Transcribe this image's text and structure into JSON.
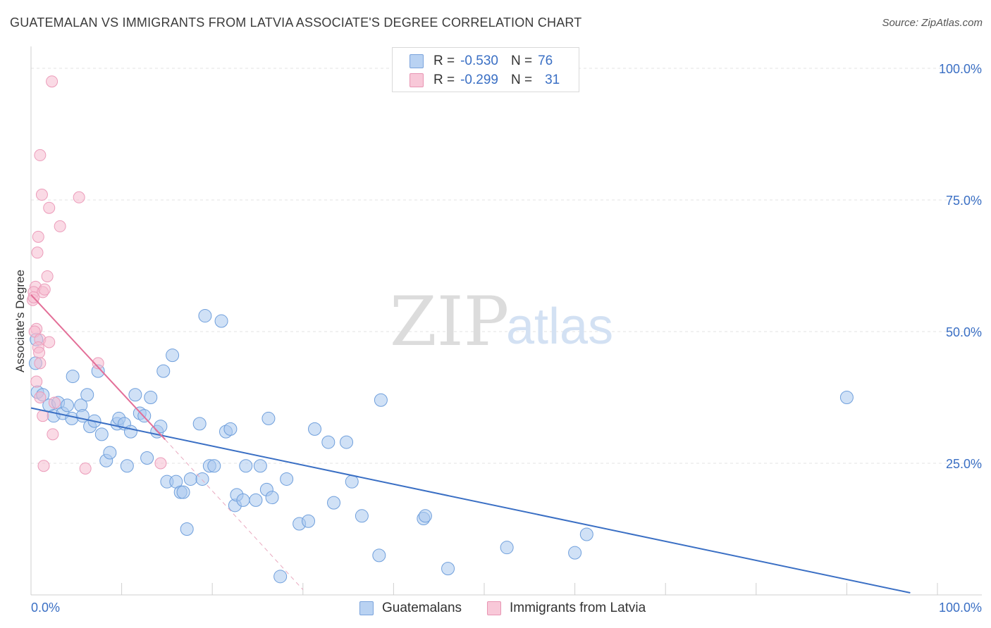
{
  "title": "GUATEMALAN VS IMMIGRANTS FROM LATVIA ASSOCIATE'S DEGREE CORRELATION CHART",
  "source": "Source: ZipAtlas.com",
  "watermark": {
    "zip": "ZIP",
    "atlas": "atlas"
  },
  "colors": {
    "blue": "#3a6fc4",
    "blue_fill": "#aac8ee",
    "pink": "#e36f98",
    "pink_fill": "#f6bcd0",
    "grid": "#e3e3e3"
  },
  "legend": {
    "rows": [
      {
        "r_label": "R =",
        "r_value": "-0.530",
        "n_label": "N =",
        "n_value": "76"
      },
      {
        "r_label": "R =",
        "r_value": "-0.299",
        "n_label": "N =",
        "n_value": "31"
      }
    ]
  },
  "bottom_legend": {
    "series1": "Guatemalans",
    "series2": "Immigrants from Latvia"
  },
  "chart_data": {
    "type": "scatter",
    "xlabel": "",
    "ylabel": "Associate's Degree",
    "xlim": [
      0,
      100
    ],
    "ylim": [
      0,
      100
    ],
    "x_tick_labels": [
      "0.0%",
      "100.0%"
    ],
    "y_tick_labels": [
      "25.0%",
      "50.0%",
      "75.0%",
      "100.0%"
    ],
    "y_tick_values": [
      25,
      50,
      75,
      100
    ],
    "grid": true,
    "series": [
      {
        "name": "Guatemalans",
        "trend": {
          "x": [
            0,
            97
          ],
          "y": [
            35.5,
            0.4
          ]
        },
        "points": [
          [
            0.5,
            44
          ],
          [
            0.7,
            38.5
          ],
          [
            1.3,
            38
          ],
          [
            2,
            36
          ],
          [
            2.5,
            34
          ],
          [
            3,
            36.5
          ],
          [
            3.5,
            34.5
          ],
          [
            4,
            36
          ],
          [
            4.5,
            33.5
          ],
          [
            4.6,
            41.5
          ],
          [
            5.5,
            36
          ],
          [
            5.7,
            34
          ],
          [
            6.2,
            38
          ],
          [
            6.5,
            32
          ],
          [
            7,
            33
          ],
          [
            7.4,
            42.5
          ],
          [
            7.8,
            30.5
          ],
          [
            8.3,
            25.5
          ],
          [
            8.7,
            27
          ],
          [
            9.5,
            32.5
          ],
          [
            9.7,
            33.5
          ],
          [
            10.3,
            32.5
          ],
          [
            10.6,
            24.5
          ],
          [
            11,
            31
          ],
          [
            11.5,
            38
          ],
          [
            12,
            34.5
          ],
          [
            12.5,
            34
          ],
          [
            12.8,
            26
          ],
          [
            13.2,
            37.5
          ],
          [
            13.9,
            31
          ],
          [
            14.3,
            32
          ],
          [
            14.6,
            42.5
          ],
          [
            15,
            21.5
          ],
          [
            15.6,
            45.5
          ],
          [
            16,
            21.5
          ],
          [
            16.5,
            19.5
          ],
          [
            16.8,
            19.5
          ],
          [
            17.2,
            12.5
          ],
          [
            17.6,
            22
          ],
          [
            18.6,
            32.5
          ],
          [
            18.9,
            22
          ],
          [
            19.2,
            53
          ],
          [
            19.7,
            24.5
          ],
          [
            20.2,
            24.5
          ],
          [
            21,
            52
          ],
          [
            21.5,
            31
          ],
          [
            22,
            31.5
          ],
          [
            22.5,
            17
          ],
          [
            22.7,
            19
          ],
          [
            23.4,
            18
          ],
          [
            23.7,
            24.5
          ],
          [
            24.8,
            18
          ],
          [
            25.3,
            24.5
          ],
          [
            26,
            20
          ],
          [
            26.2,
            33.5
          ],
          [
            26.6,
            18.5
          ],
          [
            27.5,
            3.5
          ],
          [
            28.2,
            22
          ],
          [
            29.6,
            13.5
          ],
          [
            30.6,
            14
          ],
          [
            31.3,
            31.5
          ],
          [
            32.8,
            29
          ],
          [
            33.4,
            17.5
          ],
          [
            34.8,
            29
          ],
          [
            35.4,
            21.5
          ],
          [
            36.5,
            15
          ],
          [
            38.4,
            7.5
          ],
          [
            38.6,
            37
          ],
          [
            43.3,
            14.5
          ],
          [
            43.5,
            15
          ],
          [
            46,
            5
          ],
          [
            52.5,
            9
          ],
          [
            60,
            8
          ],
          [
            61.3,
            11.5
          ],
          [
            90,
            37.5
          ],
          [
            0.6,
            48.5
          ]
        ]
      },
      {
        "name": "Immigrants from Latvia",
        "trend": {
          "x": [
            0,
            14.8
          ],
          "y": [
            57,
            29.5
          ]
        },
        "trend_dashed": {
          "x": [
            14.8,
            30
          ],
          "y": [
            29.5,
            1
          ]
        },
        "points": [
          [
            2.3,
            97.5
          ],
          [
            1,
            83.5
          ],
          [
            1.2,
            76
          ],
          [
            5.3,
            75.5
          ],
          [
            2,
            73.5
          ],
          [
            3.2,
            70
          ],
          [
            0.8,
            68
          ],
          [
            0.7,
            65
          ],
          [
            1.8,
            60.5
          ],
          [
            0.5,
            58.5
          ],
          [
            0.3,
            57.5
          ],
          [
            1.3,
            57.5
          ],
          [
            0.2,
            56
          ],
          [
            0.6,
            50.5
          ],
          [
            0.4,
            50
          ],
          [
            1,
            48.5
          ],
          [
            2,
            48
          ],
          [
            0.8,
            47
          ],
          [
            0.9,
            46
          ],
          [
            1,
            44
          ],
          [
            7.4,
            44
          ],
          [
            0.6,
            40.5
          ],
          [
            1,
            37.5
          ],
          [
            2.6,
            36.5
          ],
          [
            1.3,
            34
          ],
          [
            2.4,
            30.5
          ],
          [
            1.4,
            24.5
          ],
          [
            6,
            24
          ],
          [
            14.3,
            25
          ],
          [
            0.3,
            56.5
          ],
          [
            1.5,
            58
          ]
        ]
      }
    ]
  }
}
